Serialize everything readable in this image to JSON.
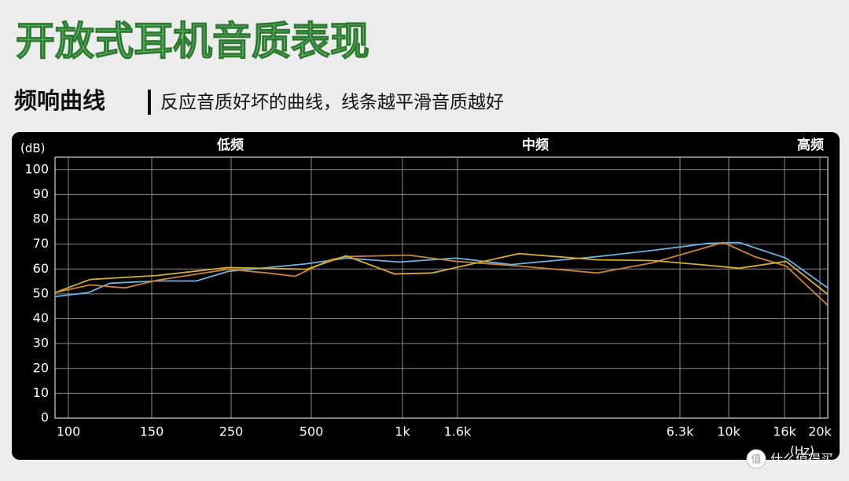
{
  "header": {
    "title": "开放式耳机音质表现",
    "subtitle_bold": "频响曲线",
    "subtitle": "反应音质好坏的曲线，线条越平滑音质越好"
  },
  "chart_data": {
    "type": "line",
    "band_labels": [
      "低频",
      "中频",
      "高频"
    ],
    "y_unit": "(dB)",
    "x_unit": "(Hz)",
    "xlim": [
      92,
      20900
    ],
    "ylim": [
      0,
      105
    ],
    "xticks": [
      100,
      150,
      250,
      500,
      {
        "value": 1000,
        "label": "1k"
      },
      {
        "value": 1600,
        "label": "1.6k"
      },
      {
        "value": 6300,
        "label": "6.3k"
      },
      {
        "value": 10000,
        "label": "10k"
      },
      {
        "value": 16000,
        "label": "16k"
      },
      {
        "value": 20000,
        "label": "20k"
      }
    ],
    "yticks": [
      0,
      10,
      20,
      30,
      40,
      50,
      60,
      70,
      80,
      90,
      100
    ],
    "grid": true,
    "series": [
      {
        "color": "#6cb4e4",
        "x": [
          92,
          112,
          125,
          157,
          206,
          246,
          485,
          690,
          983,
          1583,
          2729,
          4556,
          5719,
          8389,
          11099,
          16178,
          20900
        ],
        "values": [
          48.9,
          50.5,
          54.3,
          55.2,
          55.2,
          59,
          62.1,
          64.4,
          62.8,
          64.4,
          61.8,
          65,
          67.5,
          70.3,
          70.7,
          64.4,
          52.4
        ]
      },
      {
        "color": "#cc8430",
        "x": [
          92,
          113,
          134,
          157,
          246,
          363,
          449,
          603,
          690,
          1069,
          1583,
          2895,
          4556,
          5719,
          9582,
          12789,
          16178,
          20900
        ],
        "values": [
          50.5,
          53.6,
          52.4,
          55.5,
          59.9,
          58.4,
          57.1,
          63.7,
          65,
          65.6,
          63.1,
          61.2,
          58.4,
          62.5,
          70.7,
          65,
          61.2,
          45.4
        ]
      },
      {
        "color": "#d6ae2c",
        "x": [
          92,
          113,
          157,
          246,
          485,
          690,
          957,
          1326,
          1583,
          2895,
          4556,
          5719,
          8389,
          11099,
          16178,
          20900
        ],
        "values": [
          50.5,
          55.8,
          57.4,
          60.6,
          59.9,
          65.3,
          58,
          58.4,
          60.6,
          66.2,
          63.7,
          63.4,
          61.5,
          60.3,
          63.1,
          49.8
        ]
      }
    ]
  },
  "watermark": {
    "icon": "值",
    "text": "什么值得买"
  }
}
